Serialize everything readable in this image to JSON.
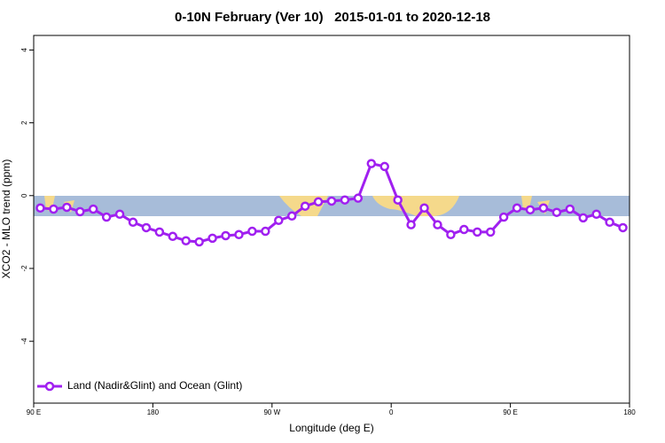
{
  "chart_data": {
    "type": "line",
    "title": "0-10N February (Ver 10)   2015-01-01 to 2020-12-18",
    "x_label": "Longitude (deg E)",
    "y_label": "XCO2 - MLO trend (ppm)",
    "x": [
      95,
      105,
      115,
      125,
      135,
      145,
      155,
      165,
      175,
      185,
      195,
      205,
      215,
      225,
      235,
      245,
      255,
      265,
      275,
      285,
      295,
      305,
      315,
      325,
      335,
      345,
      355,
      365,
      375,
      385,
      395,
      405,
      415,
      425,
      435,
      445,
      455,
      465,
      475,
      485,
      495,
      505,
      515,
      525,
      535
    ],
    "series": [
      {
        "name": "Land (Nadir&Glint) and Ocean (Glint)",
        "color": "#a020f0",
        "values": [
          -0.34,
          -0.37,
          -0.32,
          -0.44,
          -0.37,
          -0.59,
          -0.51,
          -0.73,
          -0.88,
          -1.0,
          -1.12,
          -1.24,
          -1.27,
          -1.17,
          -1.1,
          -1.07,
          -0.98,
          -0.98,
          -0.68,
          -0.56,
          -0.29,
          -0.17,
          -0.15,
          -0.12,
          -0.07,
          0.88,
          0.8,
          -0.12,
          -0.8,
          -0.34,
          -0.8,
          -1.07,
          -0.93,
          -1.0,
          -1.0,
          -0.59,
          -0.34,
          -0.39,
          -0.34,
          -0.46,
          -0.37,
          -0.61,
          -0.51,
          -0.73,
          -0.88
        ]
      }
    ],
    "xlim": [
      90,
      540
    ],
    "xticks": [
      {
        "value": 90,
        "label": "90 E"
      },
      180,
      {
        "value": 270,
        "label": "90 W"
      },
      {
        "value": 360,
        "label": "0"
      },
      {
        "value": 450,
        "label": "90 E"
      },
      180
    ],
    "ylim": [
      -5.7,
      4.4
    ],
    "yticks": [
      -4,
      -2,
      0,
      2,
      4
    ],
    "legend": "bottom-left"
  }
}
